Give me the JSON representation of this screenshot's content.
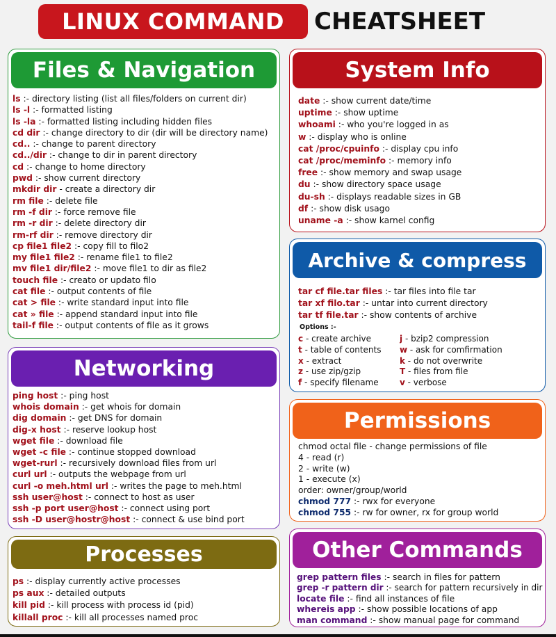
{
  "header": {
    "title_red": "LINUX COMMAND",
    "title_black": "CHEATSHEET"
  },
  "colors": {
    "files_green": "#1e9a35",
    "system_red": "#b8111a",
    "archive_blue": "#0f5aa8",
    "network_purple": "#6a1fb0",
    "permissions_orange": "#f0621a",
    "processes_olive": "#7d6b12",
    "other_magenta": "#a0209b"
  },
  "files": {
    "title": "Files & Navigation",
    "items": [
      {
        "cmd": "ls",
        "desc": " :- directory listing (list all files/folders on current dir)"
      },
      {
        "cmd": "ls -l",
        "desc": " :- formatted listing"
      },
      {
        "cmd": "ls -la",
        "desc": " :- formatted listing including hidden files"
      },
      {
        "cmd": "cd dir",
        "desc": " :- change directory to dir (dir will be directory name)"
      },
      {
        "cmd": "cd..",
        "desc": " :- change to parent directory"
      },
      {
        "cmd": "cd../dir",
        "desc": " :- change to dir in parent directory"
      },
      {
        "cmd": "cd",
        "desc": " :- change to home directory"
      },
      {
        "cmd": "pwd",
        "desc": " :- show current directory"
      },
      {
        "cmd": "mkdir dir",
        "desc": " - create a directory dir"
      },
      {
        "cmd": "rm file",
        "desc": " :- delete file"
      },
      {
        "cmd": "rm -f dir",
        "desc": " :- force remove file"
      },
      {
        "cmd": "rm -r dir",
        "desc": " :- delete directory dir"
      },
      {
        "cmd": "rm-rf dir",
        "desc": " :- remove directory dir"
      },
      {
        "cmd": "cp file1 file2",
        "desc": " :- copy fill to filo2"
      },
      {
        "cmd": "my file1 file2",
        "desc": " :- rename file1 to file2"
      },
      {
        "cmd": "mv file1 dir/file2",
        "desc": " :- move file1 to dir as file2"
      },
      {
        "cmd": "touch file",
        "desc": " :- creato or updato filo"
      },
      {
        "cmd": "cat file",
        "desc": " :- output contents of file"
      },
      {
        "cmd": "cat > file",
        "desc": " :- write standard input into file"
      },
      {
        "cmd": "cat » file",
        "desc": " :- append standard input into file"
      },
      {
        "cmd": "tail-f file",
        "desc": " :- output contents of file as it grows"
      }
    ]
  },
  "system": {
    "title": "System Info",
    "items": [
      {
        "cmd": "date",
        "desc": " :- show current date/time"
      },
      {
        "cmd": "uptime",
        "desc": " :- show uptime"
      },
      {
        "cmd": "whoami",
        "desc": " :- who you're logged in as"
      },
      {
        "cmd": "w",
        "desc": " :- display who is online"
      },
      {
        "cmd": "cat /proc/cpuinfo",
        "desc": " :- display cpu info"
      },
      {
        "cmd": "cat /proc/meminfo",
        "desc": " :- memory info"
      },
      {
        "cmd": "free",
        "desc": " :- show memory and swap usage"
      },
      {
        "cmd": "du",
        "desc": " :- show directory space usage"
      },
      {
        "cmd": "du-sh",
        "desc": " :- displays readable sizes in GB"
      },
      {
        "cmd": "df",
        "desc": " :- show disk usago"
      },
      {
        "cmd": "uname -a",
        "desc": " :- show karnel config"
      }
    ]
  },
  "archive": {
    "title": "Archive & compress",
    "items": [
      {
        "cmd": "tar cf file.tar files",
        "desc": " :- tar files into file tar"
      },
      {
        "cmd": "tar xf filo.tar",
        "desc": " :- untar into current directory"
      },
      {
        "cmd": "tar tf file.tar",
        "desc": " :- show contents of archive"
      }
    ],
    "options_label": "Options :-",
    "options_left": [
      {
        "key": "c",
        "desc": " - create archive"
      },
      {
        "key": "t",
        "desc": " - table of contents"
      },
      {
        "key": "x",
        "desc": " - extract"
      },
      {
        "key": "z",
        "desc": " - use zip/gzip"
      },
      {
        "key": "f",
        "desc": " - specify filename"
      }
    ],
    "options_right": [
      {
        "key": "j",
        "desc": " - bzip2 compression"
      },
      {
        "key": "w",
        "desc": " - ask for comfirmation"
      },
      {
        "key": "k",
        "desc": " - do not overwrite"
      },
      {
        "key": "T",
        "desc": " - files from file"
      },
      {
        "key": "v",
        "desc": " - verbose"
      }
    ]
  },
  "networking": {
    "title": "Networking",
    "items": [
      {
        "cmd": "ping host",
        "desc": " :- ping host"
      },
      {
        "cmd": "whois domain",
        "desc": " :- get whois for domain"
      },
      {
        "cmd": "dig domain",
        "desc": " :- get DNS for domain"
      },
      {
        "cmd": "dig-x host",
        "desc": " :- reserve lookup host"
      },
      {
        "cmd": "wget file",
        "desc": " :- download file"
      },
      {
        "cmd": "wget -c file",
        "desc": " :- continue stopped download"
      },
      {
        "cmd": "wget-rurl",
        "desc": " :- recursively download files from url"
      },
      {
        "cmd": "curl url",
        "desc": " :- outputs the webpage from url"
      },
      {
        "cmd": "curl -o meh.html url",
        "desc": " :- writes the page to meh.html"
      },
      {
        "cmd": "ssh user@host",
        "desc": " :- connect to host as user"
      },
      {
        "cmd": "ssh -p port user@host",
        "desc": " :- connect using port"
      },
      {
        "cmd": "ssh -D user@hostr@host",
        "desc": " :- connect & use bind port"
      }
    ]
  },
  "permissions": {
    "title": "Permissions",
    "lines": [
      {
        "cmd": "",
        "desc": "chmod octal file - change permissions of file"
      },
      {
        "cmd": "",
        "desc": "4 - read (r)"
      },
      {
        "cmd": "",
        "desc": "2 - write (w)"
      },
      {
        "cmd": "",
        "desc": "1 - execute (x)"
      },
      {
        "cmd": "",
        "desc": "order: owner/group/world"
      },
      {
        "cmd": "chmod 777",
        "desc": " :- rwx for everyone"
      },
      {
        "cmd": "chmod 755",
        "desc": " :- rw for owner, rx for group world"
      }
    ]
  },
  "processes": {
    "title": "Processes",
    "items": [
      {
        "cmd": "ps",
        "desc": " :- display currently active processes"
      },
      {
        "cmd": "ps aux",
        "desc": " :- detailed outputs"
      },
      {
        "cmd": "kill pid",
        "desc": " :- kill process with process id (pid)"
      },
      {
        "cmd": "killall proc",
        "desc": " :- kill all processes named proc"
      }
    ]
  },
  "other": {
    "title": "Other Commands",
    "items": [
      {
        "cmd": "grep pattern files",
        "desc": " :- search in files for pattern"
      },
      {
        "cmd": "grep -r pattern dir",
        "desc": " :- search for pattern recursively in dir"
      },
      {
        "cmd": "locate file",
        "desc": " :- find all instances of file"
      },
      {
        "cmd": "whereis app",
        "desc": " :- show possible locations of app"
      },
      {
        "cmd": "man command",
        "desc": " :- show manual page for command"
      }
    ]
  }
}
